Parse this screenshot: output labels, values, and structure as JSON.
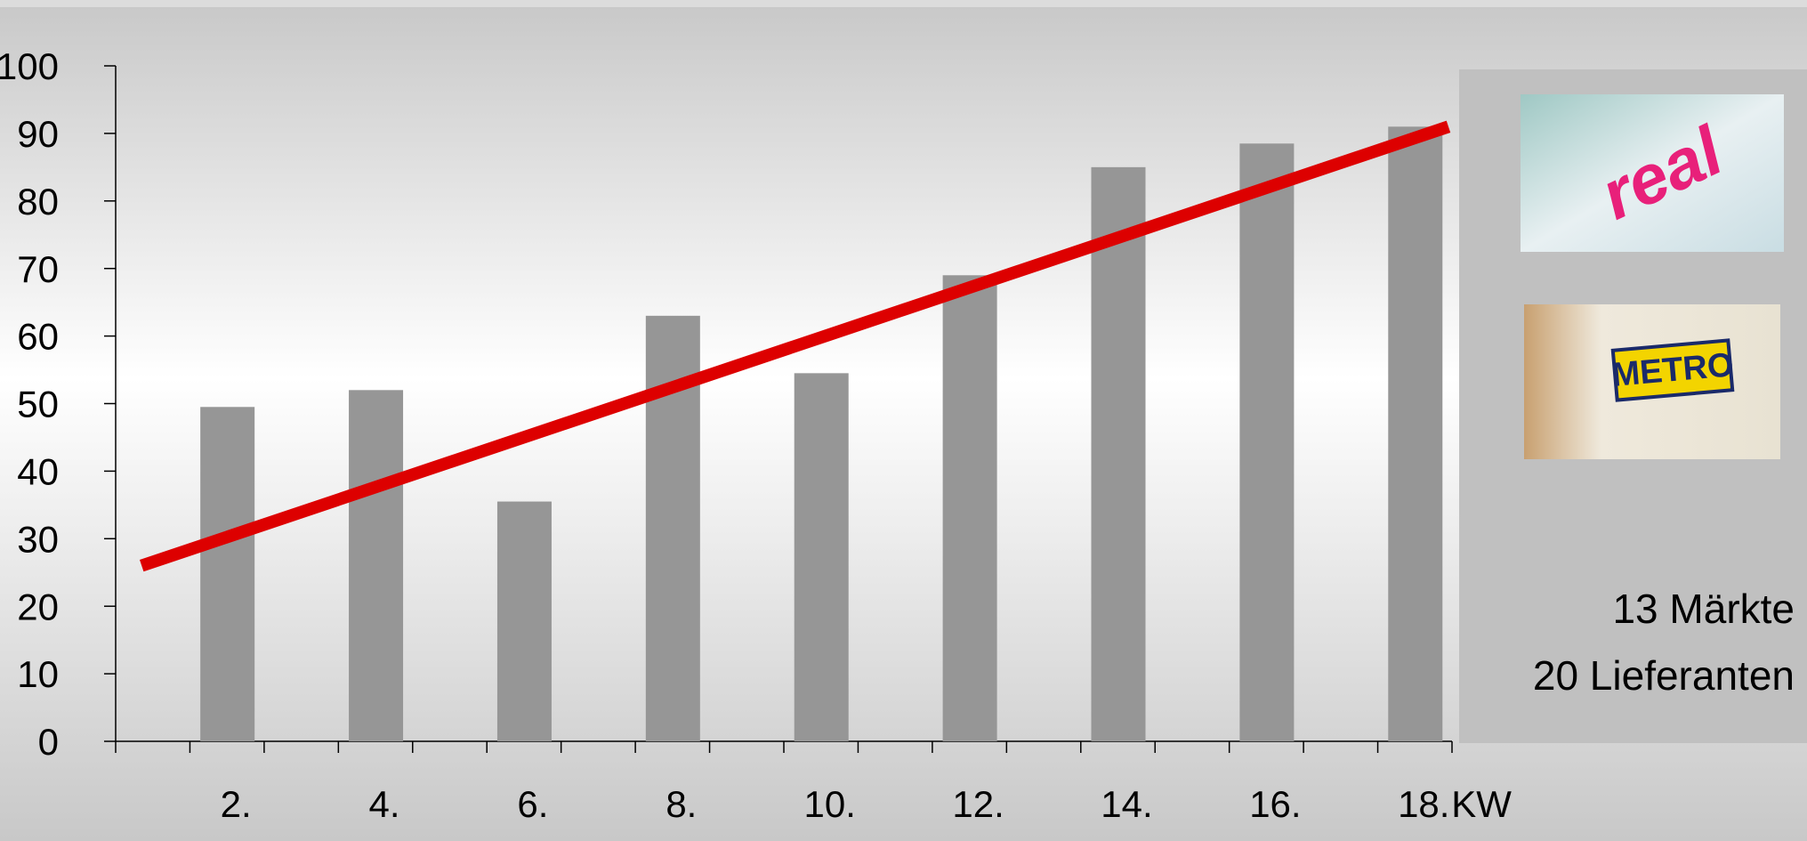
{
  "chart_data": {
    "type": "bar",
    "categories": [
      "2.",
      "4.",
      "6.",
      "8.",
      "10.",
      "12.",
      "14.",
      "16.",
      "18."
    ],
    "values": [
      49.5,
      52,
      35.5,
      63,
      54.5,
      69,
      85,
      88.5,
      91
    ],
    "color": "#969696",
    "x_label": "KW",
    "ylim": [
      0,
      100
    ],
    "yticks": [
      0,
      10,
      20,
      30,
      40,
      50,
      60,
      70,
      80,
      90,
      100
    ],
    "trendline": {
      "color": "#dd0000",
      "values": [
        26,
        91
      ]
    },
    "side_panel": {
      "logos": [
        "real",
        "METRO"
      ],
      "lines": [
        "13 Märkte",
        "20 Lieferanten"
      ]
    }
  }
}
